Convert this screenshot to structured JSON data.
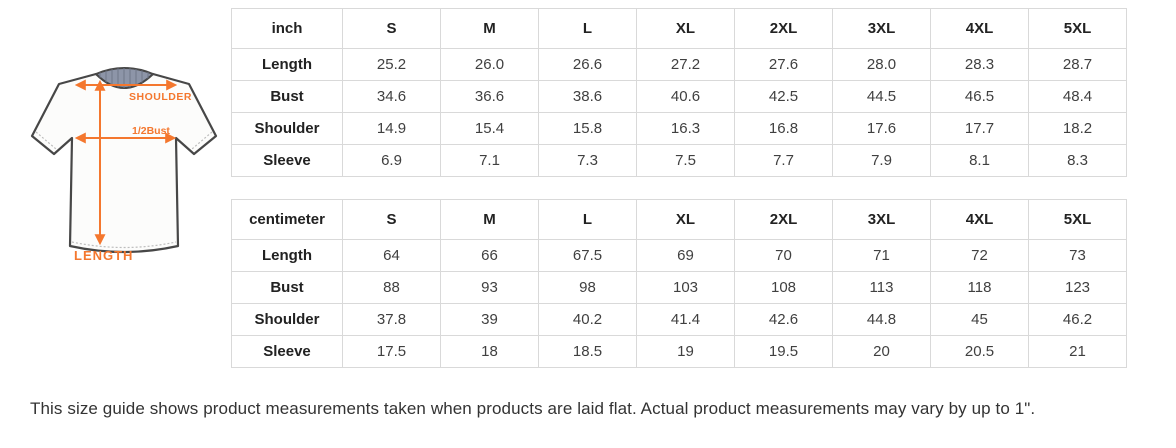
{
  "illustration": {
    "labels": {
      "shoulder": "SHOULDER",
      "bust": "1/2Bust",
      "length": "LENGTH"
    },
    "accent_color": "#f4772e",
    "collar_color": "#8d95a8"
  },
  "tables": [
    {
      "unit": "inch",
      "sizes": [
        "S",
        "M",
        "L",
        "XL",
        "2XL",
        "3XL",
        "4XL",
        "5XL"
      ],
      "rows": [
        {
          "label": "Length",
          "values": [
            "25.2",
            "26.0",
            "26.6",
            "27.2",
            "27.6",
            "28.0",
            "28.3",
            "28.7"
          ]
        },
        {
          "label": "Bust",
          "values": [
            "34.6",
            "36.6",
            "38.6",
            "40.6",
            "42.5",
            "44.5",
            "46.5",
            "48.4"
          ]
        },
        {
          "label": "Shoulder",
          "values": [
            "14.9",
            "15.4",
            "15.8",
            "16.3",
            "16.8",
            "17.6",
            "17.7",
            "18.2"
          ]
        },
        {
          "label": "Sleeve",
          "values": [
            "6.9",
            "7.1",
            "7.3",
            "7.5",
            "7.7",
            "7.9",
            "8.1",
            "8.3"
          ]
        }
      ]
    },
    {
      "unit": "centimeter",
      "sizes": [
        "S",
        "M",
        "L",
        "XL",
        "2XL",
        "3XL",
        "4XL",
        "5XL"
      ],
      "rows": [
        {
          "label": "Length",
          "values": [
            "64",
            "66",
            "67.5",
            "69",
            "70",
            "71",
            "72",
            "73"
          ]
        },
        {
          "label": "Bust",
          "values": [
            "88",
            "93",
            "98",
            "103",
            "108",
            "113",
            "118",
            "123"
          ]
        },
        {
          "label": "Shoulder",
          "values": [
            "37.8",
            "39",
            "40.2",
            "41.4",
            "42.6",
            "44.8",
            "45",
            "46.2"
          ]
        },
        {
          "label": "Sleeve",
          "values": [
            "17.5",
            "18",
            "18.5",
            "19",
            "19.5",
            "20",
            "20.5",
            "21"
          ]
        }
      ]
    }
  ],
  "footer": {
    "note": "This size guide shows product measurements taken when products are laid flat. Actual product measurements may vary by up to 1\"."
  },
  "colors": {
    "accent": "#f4772e",
    "table_border": "#d9d9d9",
    "text": "#333333",
    "collar": "#8d95a8",
    "shirt_outline": "#474747"
  }
}
